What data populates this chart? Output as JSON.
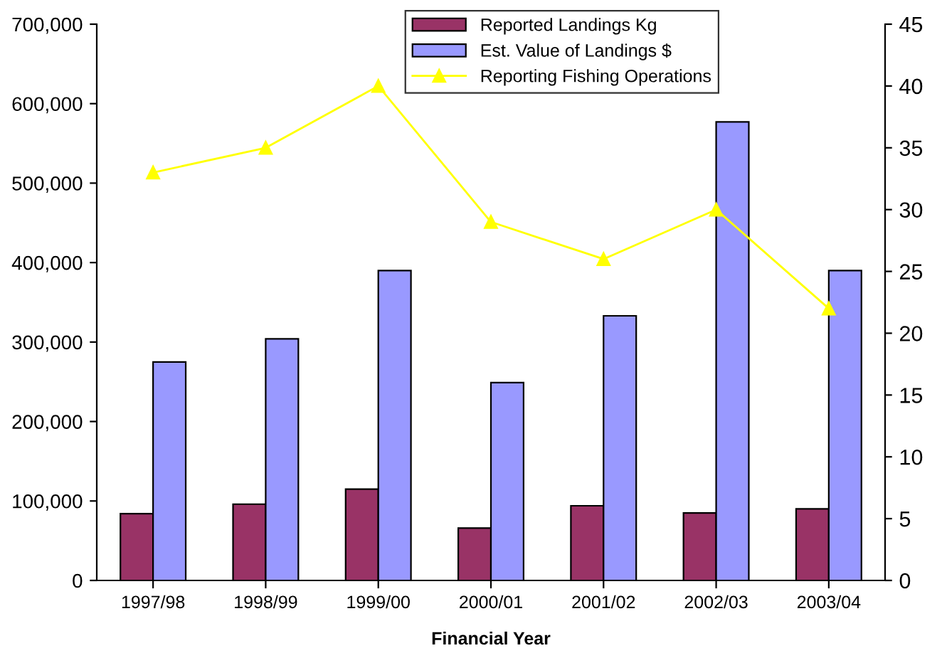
{
  "chart_data": {
    "type": "bar",
    "xlabel": "Financial Year",
    "categories": [
      "1997/98",
      "1998/99",
      "1999/00",
      "2000/01",
      "2001/02",
      "2002/03",
      "2003/04"
    ],
    "series": [
      {
        "name": "Reported Landings Kg",
        "color": "#993366",
        "values": [
          84000,
          96000,
          115000,
          66000,
          94000,
          85000,
          90000
        ]
      },
      {
        "name": "Est. Value of Landings $",
        "color": "#9999ff",
        "values": [
          275000,
          304000,
          390000,
          249000,
          333000,
          577000,
          390000
        ]
      },
      {
        "name": "Reporting Fishing Operations",
        "type": "line",
        "axis": "y2",
        "color": "#ffff00",
        "marker": "triangle",
        "values": [
          33,
          35,
          40,
          29,
          26,
          30,
          22
        ]
      }
    ],
    "ylim": [
      0,
      700000
    ],
    "yticks": [
      {
        "value": 0,
        "label": "0"
      },
      {
        "value": 100000,
        "label": "100,000"
      },
      {
        "value": 200000,
        "label": "200,000"
      },
      {
        "value": 300000,
        "label": "300,000"
      },
      {
        "value": 400000,
        "label": "400,000"
      },
      {
        "value": 500000,
        "label": "500,000"
      },
      {
        "value": 600000,
        "label": "600,000"
      },
      {
        "value": 700000,
        "label": "700,000"
      }
    ],
    "y2lim": [
      0,
      45
    ],
    "y2ticks": [
      0,
      5,
      10,
      15,
      20,
      25,
      30,
      35,
      40,
      45
    ],
    "grid": false,
    "legend": "top right"
  }
}
